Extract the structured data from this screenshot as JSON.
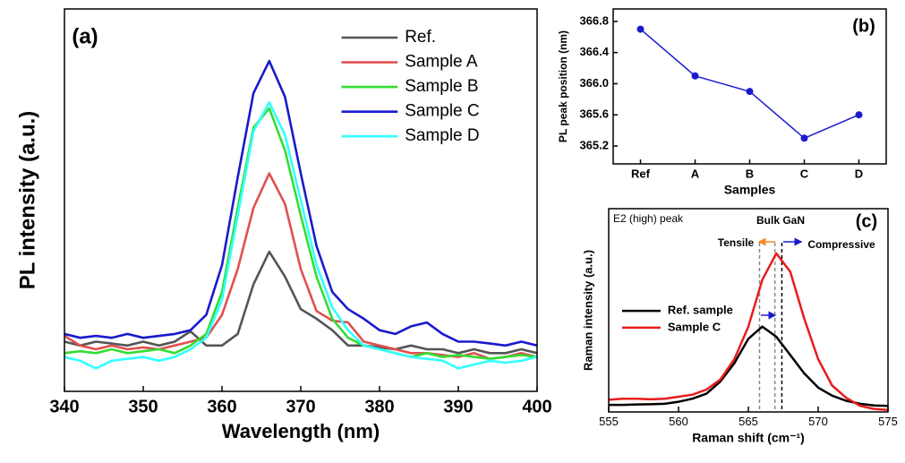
{
  "chart_data": [
    {
      "type": "line",
      "annotation": "(a)",
      "xlabel": "Wavelength (nm)",
      "ylabel": "PL intensity (a.u.)",
      "x": [
        340,
        342,
        344,
        346,
        348,
        350,
        352,
        354,
        356,
        358,
        360,
        362,
        364,
        366,
        368,
        370,
        372,
        374,
        376,
        378,
        380,
        382,
        384,
        386,
        388,
        390,
        392,
        394,
        396,
        398,
        400
      ],
      "xlim": [
        340,
        400
      ],
      "xticks": [
        340,
        350,
        360,
        370,
        380,
        390,
        400
      ],
      "ylim": [
        0,
        10
      ],
      "legend": "upper right",
      "series": [
        {
          "name": "Ref.",
          "color": "#555555",
          "values": [
            1.3,
            1.2,
            1.3,
            1.25,
            1.2,
            1.3,
            1.2,
            1.3,
            1.57,
            1.2,
            1.2,
            1.5,
            2.8,
            3.65,
            3.0,
            2.15,
            1.9,
            1.6,
            1.2,
            1.2,
            1.15,
            1.1,
            1.2,
            1.1,
            1.1,
            1.0,
            1.1,
            1.0,
            1.0,
            1.1,
            1.0
          ]
        },
        {
          "name": "Sample A",
          "color": "#e05050",
          "values": [
            1.45,
            1.2,
            1.1,
            1.2,
            1.1,
            1.15,
            1.1,
            1.2,
            1.3,
            1.4,
            2.0,
            3.2,
            4.8,
            5.7,
            4.9,
            3.2,
            2.1,
            1.85,
            1.8,
            1.3,
            1.2,
            1.1,
            1.0,
            1.0,
            0.95,
            0.9,
            1.0,
            0.85,
            0.9,
            1.0,
            0.9
          ]
        },
        {
          "name": "Sample B",
          "color": "#33dd33",
          "values": [
            1.0,
            1.05,
            1.0,
            1.1,
            1.0,
            1.05,
            1.1,
            1.0,
            1.2,
            1.5,
            2.6,
            4.8,
            6.9,
            7.4,
            6.3,
            4.6,
            3.0,
            1.9,
            1.4,
            1.2,
            1.1,
            1.0,
            0.9,
            1.0,
            0.9,
            0.95,
            0.9,
            0.85,
            0.9,
            0.95,
            0.9
          ]
        },
        {
          "name": "Sample C",
          "color": "#1a1acc",
          "values": [
            1.5,
            1.4,
            1.45,
            1.4,
            1.5,
            1.4,
            1.45,
            1.5,
            1.6,
            2.0,
            3.3,
            5.6,
            7.8,
            8.64,
            7.7,
            5.7,
            3.8,
            2.6,
            2.15,
            1.9,
            1.6,
            1.5,
            1.7,
            1.8,
            1.5,
            1.3,
            1.3,
            1.25,
            1.2,
            1.3,
            1.2
          ]
        },
        {
          "name": "Sample D",
          "color": "#33ffff",
          "values": [
            0.9,
            0.8,
            0.6,
            0.8,
            0.85,
            0.9,
            0.8,
            0.9,
            1.1,
            1.4,
            2.4,
            4.6,
            6.8,
            7.56,
            6.7,
            5.0,
            3.3,
            2.2,
            1.6,
            1.2,
            1.1,
            1.0,
            0.9,
            0.85,
            0.8,
            0.6,
            0.7,
            0.8,
            0.75,
            0.8,
            0.9
          ]
        }
      ]
    },
    {
      "type": "line",
      "annotation": "(b)",
      "xlabel": "Samples",
      "ylabel": "PL peak position (nm)",
      "categories": [
        "Ref",
        "A",
        "B",
        "C",
        "D"
      ],
      "markers": true,
      "ylim": [
        364.97,
        366.96
      ],
      "yticks": [
        365.2,
        365.6,
        {
          "value": 366,
          "label": "366.0"
        },
        366.4,
        366.8
      ],
      "series": [
        {
          "color": "#1a1acc",
          "values": [
            366.7,
            366.1,
            365.9,
            365.3,
            365.6
          ]
        }
      ]
    },
    {
      "type": "line",
      "annotation": "(c)",
      "xlabel": "Raman shift (cm⁻¹)",
      "ylabel": "Raman intensity (a.u.)",
      "x": [
        555,
        556,
        557,
        558,
        559,
        560,
        561,
        562,
        563,
        564,
        565,
        566,
        567,
        568,
        569,
        570,
        571,
        572,
        573,
        574,
        575
      ],
      "xlim": [
        555,
        575
      ],
      "xticks": [
        555,
        560,
        565,
        570,
        575
      ],
      "ylim": [
        0,
        10
      ],
      "legend": "center left",
      "texts": [
        "E2 (high) peak",
        "Bulk GaN",
        "Tensile",
        "Compressive"
      ],
      "vlines": [
        565.8,
        566.9,
        567.4
      ],
      "vline_colors": [
        "#888888",
        "#888888",
        "#000000"
      ],
      "series": [
        {
          "name": "Ref. sample",
          "color": "#000000",
          "values": [
            0.35,
            0.35,
            0.37,
            0.38,
            0.4,
            0.5,
            0.65,
            0.9,
            1.5,
            2.4,
            3.6,
            4.2,
            3.7,
            2.8,
            1.9,
            1.2,
            0.8,
            0.55,
            0.4,
            0.32,
            0.3
          ]
        },
        {
          "name": "Sample C",
          "color": "#e81c1c",
          "values": [
            0.6,
            0.65,
            0.65,
            0.62,
            0.65,
            0.75,
            0.85,
            1.1,
            1.6,
            2.6,
            4.2,
            6.5,
            7.8,
            6.9,
            4.6,
            2.6,
            1.3,
            0.7,
            0.3,
            0.15,
            0.1
          ]
        }
      ]
    }
  ]
}
